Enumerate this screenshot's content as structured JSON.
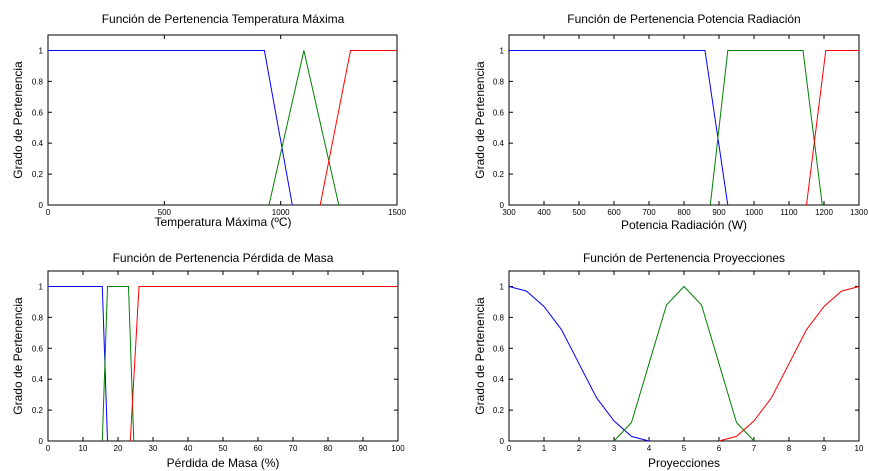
{
  "chart_data": [
    {
      "type": "line",
      "title": "Función de Pertenencia Temperatura Máxima",
      "xlabel": "Temperatura Máxima (ºC)",
      "ylabel": "Grado de Pertenencia",
      "xlim": [
        0,
        1500
      ],
      "ylim": [
        0,
        1.1
      ],
      "xticks": [
        0,
        500,
        1000,
        1500
      ],
      "yticks": [
        0,
        0.2,
        0.4,
        0.6,
        0.8,
        1
      ],
      "series": [
        {
          "color": "#0000ff",
          "x": [
            0,
            930,
            1050
          ],
          "y": [
            1,
            1,
            0
          ]
        },
        {
          "color": "#008000",
          "x": [
            950,
            1100,
            1250
          ],
          "y": [
            0,
            1,
            0
          ]
        },
        {
          "color": "#ff0000",
          "x": [
            1170,
            1300,
            1500
          ],
          "y": [
            0,
            1,
            1
          ]
        }
      ]
    },
    {
      "type": "line",
      "title": "Función de Pertenencia Potencia Radiación",
      "xlabel": "Potencia Radiación (W)",
      "ylabel": "Grado de Pertenencia",
      "xlim": [
        300,
        1300
      ],
      "ylim": [
        0,
        1.1
      ],
      "xticks": [
        300,
        400,
        500,
        600,
        700,
        800,
        900,
        1000,
        1100,
        1200,
        1300
      ],
      "yticks": [
        0,
        0.2,
        0.4,
        0.6,
        0.8,
        1
      ],
      "series": [
        {
          "color": "#0000ff",
          "x": [
            300,
            860,
            925
          ],
          "y": [
            1,
            1,
            0
          ]
        },
        {
          "color": "#008000",
          "x": [
            875,
            925,
            1140,
            1195
          ],
          "y": [
            0,
            1,
            1,
            0
          ]
        },
        {
          "color": "#ff0000",
          "x": [
            1150,
            1205,
            1300
          ],
          "y": [
            0,
            1,
            1
          ]
        }
      ]
    },
    {
      "type": "line",
      "title": "Función de Pertenencia Pérdida de Masa",
      "xlabel": "Pérdida de Masa (%)",
      "ylabel": "Grado de Pertenencia",
      "xlim": [
        0,
        100
      ],
      "ylim": [
        0,
        1.1
      ],
      "xticks": [
        0,
        10,
        20,
        30,
        40,
        50,
        60,
        70,
        80,
        90,
        100
      ],
      "yticks": [
        0,
        0.2,
        0.4,
        0.6,
        0.8,
        1
      ],
      "series": [
        {
          "color": "#0000ff",
          "x": [
            0,
            15.5,
            17
          ],
          "y": [
            1,
            1,
            0
          ]
        },
        {
          "color": "#008000",
          "x": [
            15.5,
            17,
            23,
            24.5
          ],
          "y": [
            0,
            1,
            1,
            0
          ]
        },
        {
          "color": "#ff0000",
          "x": [
            23.5,
            26,
            100
          ],
          "y": [
            0,
            1,
            1
          ]
        }
      ]
    },
    {
      "type": "line",
      "title": "Función de Pertenencia Proyecciones",
      "xlabel": "Proyecciones",
      "ylabel": "Grado de Pertenencia",
      "xlim": [
        0,
        10
      ],
      "ylim": [
        0,
        1.1
      ],
      "xticks": [
        0,
        1,
        2,
        3,
        4,
        5,
        6,
        7,
        8,
        9,
        10
      ],
      "yticks": [
        0,
        0.2,
        0.4,
        0.6,
        0.8,
        1
      ],
      "series": [
        {
          "color": "#0000ff",
          "x": [
            0,
            0.5,
            1,
            1.5,
            2,
            2.5,
            3,
            3.5,
            4
          ],
          "y": [
            1,
            0.97,
            0.87,
            0.72,
            0.5,
            0.28,
            0.13,
            0.03,
            0
          ]
        },
        {
          "color": "#008000",
          "x": [
            3,
            3.5,
            4,
            4.5,
            5,
            5.5,
            6,
            6.5,
            7
          ],
          "y": [
            0,
            0.12,
            0.5,
            0.88,
            1,
            0.88,
            0.5,
            0.12,
            0
          ]
        },
        {
          "color": "#ff0000",
          "x": [
            6,
            6.5,
            7,
            7.5,
            8,
            8.5,
            9,
            9.5,
            10
          ],
          "y": [
            0,
            0.03,
            0.13,
            0.28,
            0.5,
            0.72,
            0.87,
            0.97,
            1
          ]
        }
      ]
    }
  ]
}
